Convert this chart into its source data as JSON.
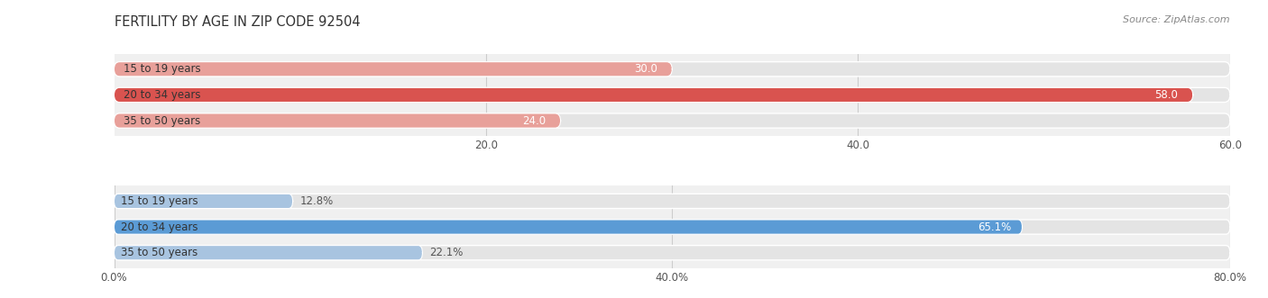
{
  "title": "FERTILITY BY AGE IN ZIP CODE 92504",
  "source": "Source: ZipAtlas.com",
  "top_section": {
    "categories": [
      "15 to 19 years",
      "20 to 34 years",
      "35 to 50 years"
    ],
    "values": [
      30.0,
      58.0,
      24.0
    ],
    "xlim_max": 60.0,
    "xticks": [
      20.0,
      40.0,
      60.0
    ],
    "xtick_labels": [
      "20.0",
      "40.0",
      "60.0"
    ],
    "bar_color_light": "#e8a09a",
    "bar_color_dark": "#d9534f"
  },
  "bottom_section": {
    "categories": [
      "15 to 19 years",
      "20 to 34 years",
      "35 to 50 years"
    ],
    "values": [
      12.8,
      65.1,
      22.1
    ],
    "xlim_max": 80.0,
    "xticks": [
      0.0,
      40.0,
      80.0
    ],
    "xtick_labels": [
      "0.0%",
      "40.0%",
      "80.0%"
    ],
    "bar_color_light": "#a8c4e0",
    "bar_color_dark": "#5b9bd5"
  },
  "bar_height": 0.55,
  "bg_color": "#f0f0f0",
  "bar_bg_color": "#e4e4e4",
  "grid_color": "#cccccc",
  "label_fontsize": 8.5,
  "tick_fontsize": 8.5,
  "title_fontsize": 10.5,
  "source_fontsize": 8,
  "category_fontsize": 8.5
}
